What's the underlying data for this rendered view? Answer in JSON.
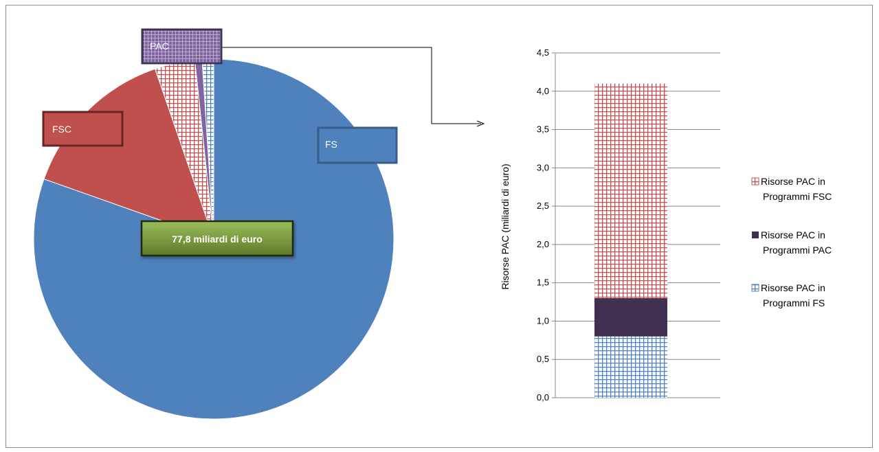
{
  "chart_data": [
    {
      "type": "pie",
      "slices": [
        {
          "name": "FS",
          "value": 62.4,
          "color": "#4f81bd",
          "pattern": "solid"
        },
        {
          "name": "FSC",
          "value": 11.1,
          "color": "#c0504d",
          "pattern": "solid"
        },
        {
          "name": "Risorse PAC in Programmi FSC",
          "value": 2.8,
          "color": "#c0504d",
          "pattern": "grid"
        },
        {
          "name": "Risorse PAC in Programmi PAC",
          "value": 0.5,
          "color": "#8064a2",
          "pattern": "solid"
        },
        {
          "name": "Risorse PAC in Programmi FS",
          "value": 0.8,
          "color": "#4f81bd",
          "pattern": "grid"
        }
      ],
      "callouts": [
        {
          "label": "FS",
          "color": "#4f81bd",
          "border": "#385d8a"
        },
        {
          "label": "FSC",
          "color": "#c0504d",
          "border": "#632523"
        },
        {
          "label": "PAC",
          "color": "#8064a2",
          "border": "#3f3151"
        }
      ],
      "center_label": "77,8 miliardi di euro",
      "center_label_color": "#77933c"
    },
    {
      "type": "bar",
      "stacked": true,
      "ylabel": "Risorse PAC (miliardi di euro)",
      "ylim": [
        0,
        4.5
      ],
      "yticks": [
        "0,0",
        "0,5",
        "1,0",
        "1,5",
        "2,0",
        "2,5",
        "3,0",
        "3,5",
        "4,0",
        "4,5"
      ],
      "grid": true,
      "legend_position": "right",
      "series": [
        {
          "name": "Risorse PAC in Programmi FS",
          "values": [
            0.8
          ],
          "color": "#4f81bd",
          "pattern": "grid"
        },
        {
          "name": "Risorse PAC in Programmi PAC",
          "values": [
            0.5
          ],
          "color": "#403152",
          "pattern": "solid"
        },
        {
          "name": "Risorse PAC in Programmi FSC",
          "values": [
            2.8
          ],
          "color": "#c0504d",
          "pattern": "grid"
        }
      ],
      "legend": [
        {
          "line1": "Risorse PAC in",
          "line2": "Programmi FSC",
          "color": "#c0504d",
          "pattern": "grid"
        },
        {
          "line1": "Risorse PAC in",
          "line2": "Programmi PAC",
          "color": "#403152",
          "pattern": "solid"
        },
        {
          "line1": "Risorse PAC in",
          "line2": "Programmi FS",
          "color": "#4f81bd",
          "pattern": "grid"
        }
      ]
    }
  ]
}
